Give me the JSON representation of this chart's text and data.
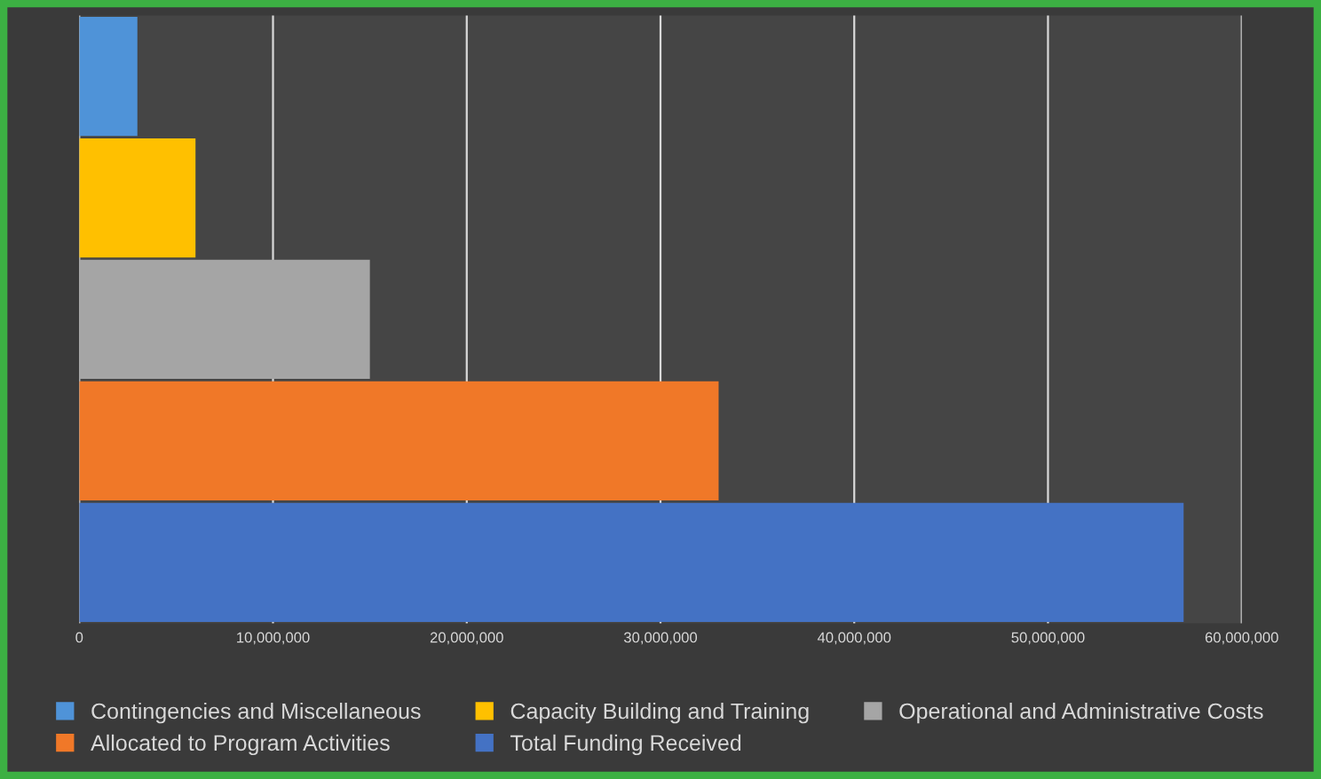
{
  "chart_data": {
    "type": "bar",
    "orientation": "horizontal",
    "categories": [
      null,
      null,
      null,
      null,
      null
    ],
    "series": [
      {
        "name": "Contingencies and Miscellaneous",
        "color": "#4f93d8",
        "values": [
          3000000,
          null,
          null,
          null,
          null
        ]
      },
      {
        "name": "Capacity Building and Training",
        "color": "#ffc000",
        "values": [
          null,
          6000000,
          null,
          null,
          null
        ]
      },
      {
        "name": "Operational and Administrative Costs",
        "color": "#a5a5a5",
        "values": [
          null,
          null,
          15000000,
          null,
          null
        ]
      },
      {
        "name": "Allocated to Program Activities",
        "color": "#f07828",
        "values": [
          null,
          null,
          null,
          33000000,
          null
        ]
      },
      {
        "name": "Total Funding Received",
        "color": "#4472c4",
        "values": [
          null,
          null,
          null,
          null,
          57000000
        ]
      }
    ],
    "xlim": [
      0,
      60000000
    ],
    "xticks": [
      {
        "value": 0,
        "label": "0"
      },
      {
        "value": 10000000,
        "label": "10,000,000"
      },
      {
        "value": 20000000,
        "label": "20,000,000"
      },
      {
        "value": 30000000,
        "label": "30,000,000"
      },
      {
        "value": 40000000,
        "label": "40,000,000"
      },
      {
        "value": 50000000,
        "label": "50,000,000"
      },
      {
        "value": 60000000,
        "label": "60,000,000"
      }
    ],
    "grid": "x",
    "legend": "bottom"
  }
}
